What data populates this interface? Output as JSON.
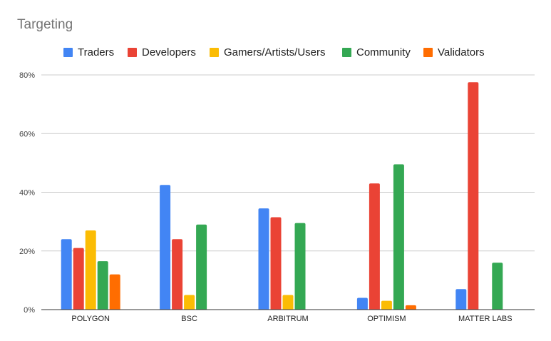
{
  "chart_data": {
    "type": "bar",
    "title": "Targeting",
    "categories": [
      "POLYGON",
      "BSC",
      "ARBITRUM",
      "OPTIMISM",
      "MATTER LABS"
    ],
    "series": [
      {
        "name": "Traders",
        "color": "#4285f4",
        "values": [
          24,
          42.5,
          34.5,
          4,
          7
        ]
      },
      {
        "name": "Developers",
        "color": "#ea4335",
        "values": [
          21,
          24,
          31.5,
          43,
          77.5
        ]
      },
      {
        "name": "Gamers/Artists/Users",
        "color": "#fbbc04",
        "values": [
          27,
          5,
          5,
          3,
          null
        ]
      },
      {
        "name": "Community",
        "color": "#34a853",
        "values": [
          16.5,
          29,
          29.5,
          49.5,
          16
        ]
      },
      {
        "name": "Validators",
        "color": "#ff6d01",
        "values": [
          12,
          null,
          null,
          1.5,
          null
        ]
      }
    ],
    "ylim": [
      0,
      80
    ],
    "yticks": [
      "0%",
      "20%",
      "40%",
      "60%",
      "80%"
    ],
    "ytick_values": [
      0,
      20,
      40,
      60,
      80
    ],
    "grid": true,
    "legend_position": "top"
  }
}
